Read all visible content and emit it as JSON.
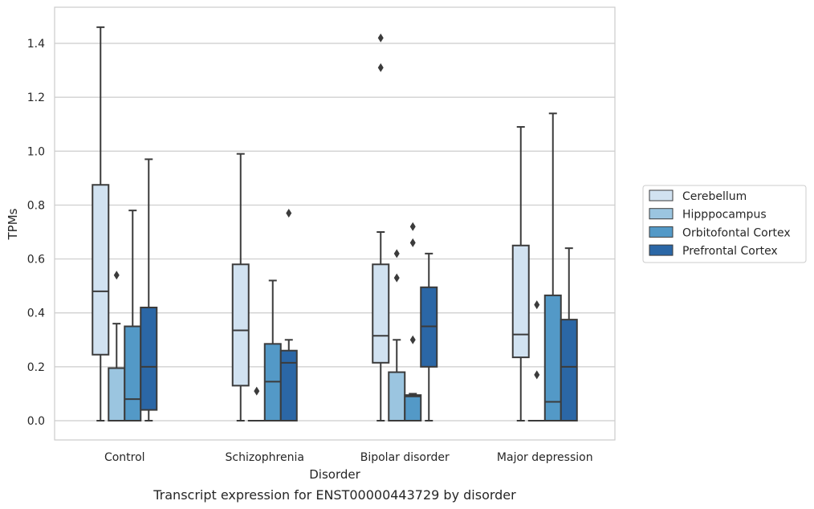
{
  "chart_data": {
    "type": "box",
    "categories": [
      "Control",
      "Schizophrenia",
      "Bipolar disorder",
      "Major depression"
    ],
    "xlabel": "Disorder",
    "ylabel": "TPMs",
    "caption": "Transcript expression for ENST00000443729 by disorder",
    "ylim": [
      -0.07,
      1.53
    ],
    "yticks": [
      "0.0",
      "0.2",
      "0.4",
      "0.6",
      "0.8",
      "1.0",
      "1.2",
      "1.4"
    ],
    "grid": true,
    "legend_position": "right",
    "series": [
      {
        "name": "Cerebellum",
        "color": "#d1e2f1",
        "boxes": [
          {
            "whisker_low": 0.0,
            "q1": 0.245,
            "median": 0.48,
            "q3": 0.875,
            "whisker_high": 1.46,
            "outliers": []
          },
          {
            "whisker_low": 0.0,
            "q1": 0.13,
            "median": 0.335,
            "q3": 0.58,
            "whisker_high": 0.99,
            "outliers": []
          },
          {
            "whisker_low": 0.0,
            "q1": 0.215,
            "median": 0.315,
            "q3": 0.58,
            "whisker_high": 0.7,
            "outliers": [
              1.31,
              1.42
            ]
          },
          {
            "whisker_low": 0.0,
            "q1": 0.235,
            "median": 0.32,
            "q3": 0.65,
            "whisker_high": 1.09,
            "outliers": []
          }
        ]
      },
      {
        "name": "Hipppocampus",
        "color": "#9bc5e0",
        "boxes": [
          {
            "whisker_low": 0.0,
            "q1": 0.0,
            "median": 0.0,
            "q3": 0.195,
            "whisker_high": 0.36,
            "outliers": [
              0.54
            ]
          },
          {
            "whisker_low": 0.0,
            "q1": 0.0,
            "median": 0.0,
            "q3": 0.0,
            "whisker_high": 0.0,
            "outliers": [
              0.11
            ]
          },
          {
            "whisker_low": 0.0,
            "q1": 0.0,
            "median": 0.0,
            "q3": 0.18,
            "whisker_high": 0.3,
            "outliers": [
              0.53,
              0.62
            ]
          },
          {
            "whisker_low": 0.0,
            "q1": 0.0,
            "median": 0.0,
            "q3": 0.0,
            "whisker_high": 0.0,
            "outliers": [
              0.17,
              0.43
            ]
          }
        ]
      },
      {
        "name": "Orbitofontal Cortex",
        "color": "#5399c7",
        "boxes": [
          {
            "whisker_low": 0.0,
            "q1": 0.0,
            "median": 0.08,
            "q3": 0.35,
            "whisker_high": 0.78,
            "outliers": []
          },
          {
            "whisker_low": 0.0,
            "q1": 0.0,
            "median": 0.145,
            "q3": 0.285,
            "whisker_high": 0.52,
            "outliers": []
          },
          {
            "whisker_low": 0.0,
            "q1": 0.0,
            "median": 0.09,
            "q3": 0.095,
            "whisker_high": 0.1,
            "outliers": [
              0.3,
              0.66,
              0.72
            ]
          },
          {
            "whisker_low": 0.0,
            "q1": 0.0,
            "median": 0.07,
            "q3": 0.465,
            "whisker_high": 1.14,
            "outliers": []
          }
        ]
      },
      {
        "name": "Prefrontal Cortex",
        "color": "#2b67a6",
        "boxes": [
          {
            "whisker_low": 0.0,
            "q1": 0.04,
            "median": 0.2,
            "q3": 0.42,
            "whisker_high": 0.97,
            "outliers": []
          },
          {
            "whisker_low": 0.0,
            "q1": 0.0,
            "median": 0.215,
            "q3": 0.26,
            "whisker_high": 0.3,
            "outliers": [
              0.77
            ]
          },
          {
            "whisker_low": 0.0,
            "q1": 0.2,
            "median": 0.35,
            "q3": 0.495,
            "whisker_high": 0.62,
            "outliers": []
          },
          {
            "whisker_low": 0.0,
            "q1": 0.0,
            "median": 0.2,
            "q3": 0.375,
            "whisker_high": 0.64,
            "outliers": []
          }
        ]
      }
    ]
  }
}
